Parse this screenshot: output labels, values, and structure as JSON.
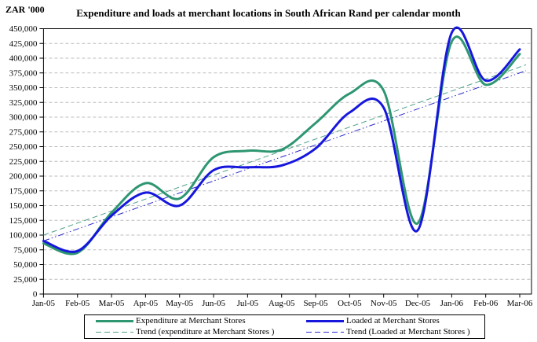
{
  "chart": {
    "y_axis_title": "ZAR '000",
    "title": "Expenditure and loads at merchant locations in South African Rand per calendar month"
  },
  "legend": {
    "items": [
      {
        "label": "Expenditure at Merchant Stores",
        "color": "#2E9671",
        "line_style": "solid"
      },
      {
        "label": "Loaded at Merchant Stores",
        "color": "#1616DD",
        "line_style": "solid"
      },
      {
        "label": "Trend (expenditure at Merchant Stores )",
        "color": "#4FA088",
        "line_style": "dashed"
      },
      {
        "label": "Trend (Loaded at Merchant Stores )",
        "color": "#2A2ACC",
        "line_style": "dashed"
      }
    ]
  },
  "chart_data": {
    "type": "line",
    "title": "Expenditure and loads at merchant locations in South African Rand per calendar month",
    "xlabel": "",
    "ylabel": "ZAR '000",
    "ylim": [
      0,
      450000
    ],
    "y_step": 25000,
    "grid": "horizontal-dashed",
    "legend_position": "bottom",
    "categories": [
      "Jan-05",
      "Feb-05",
      "Mar-05",
      "Apr-05",
      "May-05",
      "Jun-05",
      "Jul-05",
      "Aug-05",
      "Sep-05",
      "Oct-05",
      "Nov-05",
      "Dec-05",
      "Jan-06",
      "Feb-06",
      "Mar-06"
    ],
    "y_tick_labels": [
      "0",
      "25,000",
      "50,000",
      "75,000",
      "100,000",
      "125,000",
      "150,000",
      "175,000",
      "200,000",
      "225,000",
      "250,000",
      "275,000",
      "300,000",
      "325,000",
      "350,000",
      "375,000",
      "400,000",
      "425,000",
      "450,000"
    ],
    "series": [
      {
        "name": "Expenditure at Merchant Stores",
        "color": "#2E9671",
        "style": "solid-smooth",
        "values": [
          86000,
          70000,
          138000,
          188000,
          162000,
          232000,
          243000,
          245000,
          290000,
          340000,
          345000,
          120000,
          428000,
          355000,
          407000
        ]
      },
      {
        "name": "Loaded at Merchant Stores",
        "color": "#1616DD",
        "style": "solid-smooth",
        "values": [
          90000,
          73000,
          133000,
          172000,
          150000,
          210000,
          215000,
          218000,
          247000,
          308000,
          316000,
          108000,
          443000,
          362000,
          415000
        ]
      },
      {
        "name": "Trend (expenditure at Merchant Stores )",
        "color": "#4FA088",
        "style": "dashed-straight",
        "endpoint_values": [
          100000,
          385000
        ]
      },
      {
        "name": "Trend (Loaded at Merchant Stores )",
        "color": "#2A2ACC",
        "style": "dash-dot-dot-straight",
        "endpoint_values": [
          90000,
          375000
        ]
      }
    ],
    "gridline_color": "#BDBDBD",
    "axis_color": "#000000"
  }
}
